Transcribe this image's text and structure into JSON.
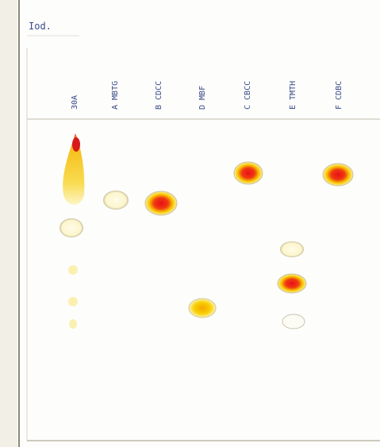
{
  "plate": {
    "stain": "Iod.",
    "lanes": [
      {
        "label": "30A"
      },
      {
        "label": "A MBTG"
      },
      {
        "label": "B CDCC"
      },
      {
        "label": "D MBF"
      },
      {
        "label": "C CBCC"
      },
      {
        "label": "E TMTH"
      },
      {
        "label": "F CDBC"
      }
    ]
  }
}
